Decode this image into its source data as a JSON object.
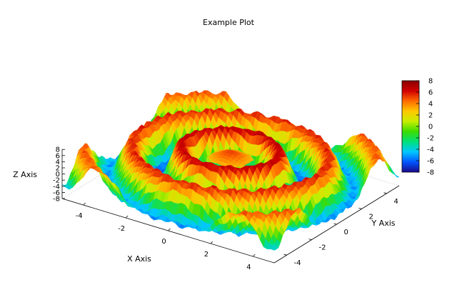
{
  "chart_data": {
    "type": "surface3d",
    "title": "Example Plot",
    "xlabel": "X Axis",
    "ylabel": "Y Axis",
    "zlabel": "Z Axis",
    "xlim": [
      -5,
      5
    ],
    "ylim": [
      -5,
      5
    ],
    "zlim": [
      -8,
      8
    ],
    "x_ticks": [
      -4,
      -2,
      0,
      2,
      4
    ],
    "y_ticks": [
      -4,
      -2,
      0,
      2,
      4
    ],
    "z_ticks": [
      -8,
      -6,
      -4,
      -2,
      0,
      2,
      4,
      6,
      8
    ],
    "colorbar": {
      "ticks": [
        -8,
        -6,
        -4,
        -2,
        0,
        2,
        4,
        6,
        8
      ],
      "colors": [
        "#1a0a8c",
        "#0055ff",
        "#00c8ff",
        "#00e07a",
        "#3cdc00",
        "#c8ee00",
        "#ffc800",
        "#ff6a00",
        "#d00000",
        "#8a0000"
      ]
    },
    "surface_description": "ripple surface z = 8*cos(r*pi)*exp(-r/12) with a central plateau, r = sqrt(x^2+y^2)",
    "grid": false,
    "legend": "colorbar-right"
  }
}
